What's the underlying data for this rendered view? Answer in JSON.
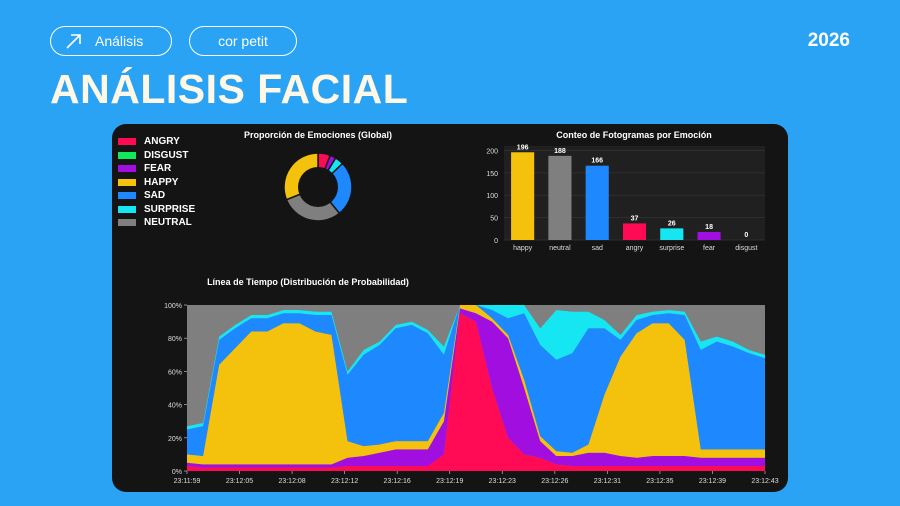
{
  "header": {
    "tag1": "Análisis",
    "tag2": "cor petit",
    "year": "2026",
    "title": "ANÁLISIS FACIAL"
  },
  "colors": {
    "angry": "#ff0a54",
    "disgust": "#11e85a",
    "fear": "#a10fe0",
    "happy": "#f4c20d",
    "sad": "#1e88ff",
    "surprise": "#16e6f2",
    "neutral": "#7f7f7f",
    "background": "#2aa3f5",
    "panel": "#141414"
  },
  "legend": {
    "items": [
      {
        "key": "angry",
        "label": "ANGRY"
      },
      {
        "key": "disgust",
        "label": "DISGUST"
      },
      {
        "key": "fear",
        "label": "FEAR"
      },
      {
        "key": "happy",
        "label": "HAPPY"
      },
      {
        "key": "sad",
        "label": "SAD"
      },
      {
        "key": "surprise",
        "label": "SURPRISE"
      },
      {
        "key": "neutral",
        "label": "NEUTRAL"
      }
    ]
  },
  "chart_data": [
    {
      "type": "pie",
      "title": "Proporción de Emociones (Global)",
      "labels": [
        "angry",
        "fear",
        "surprise",
        "sad",
        "neutral",
        "happy",
        "disgust"
      ],
      "values": [
        37,
        18,
        26,
        166,
        188,
        196,
        0
      ]
    },
    {
      "type": "bar",
      "title": "Conteo de Fotogramas por Emoción",
      "categories": [
        "happy",
        "neutral",
        "sad",
        "angry",
        "surprise",
        "fear",
        "disgust"
      ],
      "values": [
        196,
        188,
        166,
        37,
        26,
        18,
        0
      ],
      "ylim": [
        0,
        210
      ],
      "yticks": [
        0,
        50,
        100,
        150,
        200
      ]
    },
    {
      "type": "area",
      "title": "Línea de Tiempo (Distribución de Probabilidad)",
      "stacked": true,
      "normalized": true,
      "ylim": [
        0,
        100
      ],
      "yticks": [
        "0%",
        "20%",
        "40%",
        "60%",
        "80%",
        "100%"
      ],
      "x_ticks": [
        "23:11:59",
        "23:12:05",
        "23:12:08",
        "23:12:12",
        "23:12:16",
        "23:12:19",
        "23:12:23",
        "23:12:26",
        "23:12:31",
        "23:12:35",
        "23:12:39",
        "23:12:43"
      ],
      "stack_order": [
        "angry",
        "fear",
        "happy",
        "sad",
        "surprise",
        "neutral"
      ],
      "x": [
        "23:11:59",
        "23:12:00",
        "23:12:02",
        "23:12:03",
        "23:12:05",
        "23:12:06",
        "23:12:08",
        "23:12:09",
        "23:12:11",
        "23:12:12",
        "23:12:14",
        "23:12:16",
        "23:12:17",
        "23:12:18",
        "23:12:19",
        "23:12:21",
        "23:12:22",
        "23:12:23",
        "23:12:24",
        "23:12:25",
        "23:12:26",
        "23:12:27",
        "23:12:28",
        "23:12:29",
        "23:12:31",
        "23:12:32",
        "23:12:33",
        "23:12:34",
        "23:12:35",
        "23:12:36",
        "23:12:37",
        "23:12:38",
        "23:12:39",
        "23:12:40",
        "23:12:41",
        "23:12:42",
        "23:12:43"
      ],
      "series": [
        {
          "name": "angry",
          "values": [
            3,
            2,
            2,
            2,
            2,
            2,
            2,
            2,
            2,
            2,
            3,
            3,
            3,
            3,
            3,
            3,
            10,
            95,
            90,
            50,
            20,
            10,
            8,
            4,
            3,
            3,
            3,
            3,
            3,
            3,
            3,
            3,
            3,
            3,
            3,
            3,
            3
          ]
        },
        {
          "name": "fear",
          "values": [
            2,
            2,
            2,
            2,
            2,
            2,
            2,
            2,
            2,
            2,
            5,
            6,
            8,
            10,
            10,
            10,
            20,
            3,
            5,
            40,
            60,
            40,
            10,
            5,
            6,
            8,
            8,
            6,
            5,
            6,
            6,
            6,
            5,
            5,
            5,
            5,
            5
          ]
        },
        {
          "name": "happy",
          "values": [
            5,
            5,
            60,
            70,
            80,
            80,
            85,
            85,
            80,
            78,
            10,
            6,
            5,
            5,
            5,
            5,
            5,
            2,
            5,
            2,
            2,
            5,
            3,
            3,
            2,
            5,
            35,
            60,
            75,
            80,
            80,
            70,
            5,
            5,
            5,
            5,
            5
          ]
        },
        {
          "name": "sad",
          "values": [
            15,
            18,
            15,
            12,
            8,
            8,
            6,
            6,
            10,
            12,
            40,
            55,
            60,
            68,
            70,
            65,
            35,
            0,
            0,
            5,
            10,
            40,
            55,
            55,
            60,
            70,
            40,
            10,
            8,
            5,
            6,
            15,
            60,
            65,
            62,
            58,
            55
          ]
        },
        {
          "name": "surprise",
          "values": [
            2,
            2,
            2,
            2,
            2,
            2,
            2,
            2,
            2,
            2,
            2,
            3,
            2,
            2,
            2,
            2,
            5,
            0,
            0,
            3,
            8,
            5,
            10,
            30,
            25,
            10,
            5,
            3,
            3,
            2,
            2,
            2,
            5,
            3,
            3,
            2,
            2
          ]
        },
        {
          "name": "neutral",
          "values": [
            73,
            71,
            19,
            12,
            6,
            6,
            3,
            3,
            4,
            4,
            40,
            27,
            22,
            12,
            10,
            15,
            25,
            0,
            0,
            0,
            0,
            0,
            14,
            3,
            4,
            4,
            9,
            18,
            6,
            4,
            3,
            4,
            22,
            19,
            22,
            27,
            30
          ]
        }
      ]
    }
  ]
}
